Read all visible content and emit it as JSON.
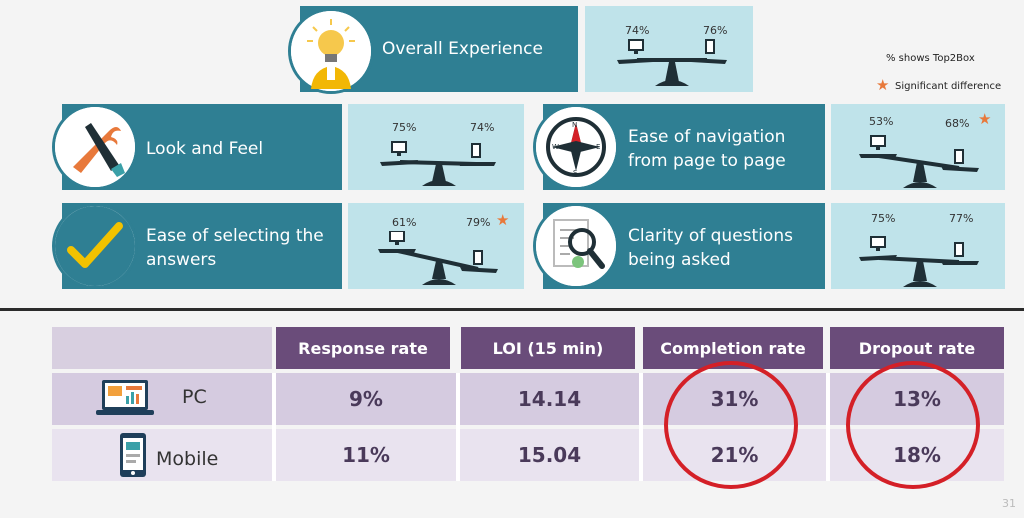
{
  "legend": {
    "note": "% shows Top2Box",
    "significant": "Significant  difference"
  },
  "cards": [
    {
      "label": "Overall Experience",
      "pc": "74%",
      "mobile": "76%",
      "pc_star": false,
      "mobile_star": false
    },
    {
      "label": "Look and Feel",
      "pc": "75%",
      "mobile": "74%",
      "pc_star": false,
      "mobile_star": false
    },
    {
      "label": "Ease of navigation from page to page",
      "pc": "53%",
      "mobile": "68%",
      "pc_star": false,
      "mobile_star": true
    },
    {
      "label": "Ease of selecting the answers",
      "pc": "61%",
      "mobile": "79%",
      "pc_star": false,
      "mobile_star": true
    },
    {
      "label": "Clarity of questions being asked",
      "pc": "75%",
      "mobile": "77%",
      "pc_star": false,
      "mobile_star": false
    }
  ],
  "table": {
    "headers": [
      "Response rate",
      "LOI (15 min)",
      "Completion rate",
      "Dropout rate"
    ],
    "rows": [
      {
        "device": "PC",
        "values": [
          "9%",
          "14.14",
          "31%",
          "13%"
        ]
      },
      {
        "device": "Mobile",
        "values": [
          "11%",
          "15.04",
          "21%",
          "18%"
        ]
      }
    ]
  },
  "page_number": "31",
  "colors": {
    "teal": "#2f7f93",
    "panel": "#bfe3ea",
    "header": "#6a4c7a",
    "highlight": "#d42027",
    "star": "#e8793b"
  }
}
